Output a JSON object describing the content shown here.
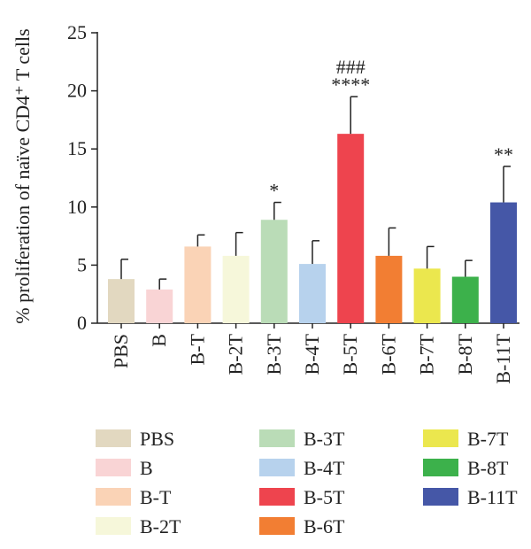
{
  "chart_data": {
    "type": "bar",
    "ylabel": "% proliferation of naïve CD4⁺ T cells",
    "ylim": [
      0,
      25
    ],
    "yticks": [
      0,
      5,
      10,
      15,
      20,
      25
    ],
    "grid": false,
    "legend_position": "bottom",
    "categories": [
      "PBS",
      "B",
      "B-T",
      "B-2T",
      "B-3T",
      "B-4T",
      "B-5T",
      "B-6T",
      "B-7T",
      "B-8T",
      "B-11T"
    ],
    "values": [
      3.8,
      2.9,
      6.6,
      5.8,
      8.9,
      5.1,
      16.3,
      5.8,
      4.7,
      4.0,
      10.4
    ],
    "error_upper": [
      1.7,
      0.9,
      1.0,
      2.0,
      1.5,
      2.0,
      3.2,
      2.4,
      1.9,
      1.4,
      3.1
    ],
    "colors": [
      "#e2d8c0",
      "#f9d4d5",
      "#fad3b6",
      "#f6f7da",
      "#badcb7",
      "#b7d2ed",
      "#ee444e",
      "#f27e33",
      "#ebe74e",
      "#3cb14b",
      "#4557a7"
    ],
    "annotations": [
      {
        "category": "B-3T",
        "lines": [
          "*"
        ]
      },
      {
        "category": "B-5T",
        "lines": [
          "###",
          "****"
        ]
      },
      {
        "category": "B-11T",
        "lines": [
          "**"
        ]
      }
    ],
    "legend": [
      "PBS",
      "B",
      "B-T",
      "B-2T",
      "B-3T",
      "B-4T",
      "B-5T",
      "B-6T",
      "B-7T",
      "B-8T",
      "B-11T"
    ]
  }
}
